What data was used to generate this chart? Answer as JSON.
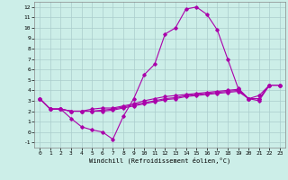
{
  "title": "",
  "xlabel": "Windchill (Refroidissement éolien,°C)",
  "ylabel": "",
  "xlim": [
    -0.5,
    23.5
  ],
  "ylim": [
    -1.5,
    12.5
  ],
  "yticks": [
    -1,
    0,
    1,
    2,
    3,
    4,
    5,
    6,
    7,
    8,
    9,
    10,
    11,
    12
  ],
  "xticks": [
    0,
    1,
    2,
    3,
    4,
    5,
    6,
    7,
    8,
    9,
    10,
    11,
    12,
    13,
    14,
    15,
    16,
    17,
    18,
    19,
    20,
    21,
    22,
    23
  ],
  "background_color": "#cceee8",
  "grid_color": "#aacccc",
  "line_color": "#aa00aa",
  "lines": [
    {
      "x": [
        0,
        1,
        2,
        3,
        4,
        5,
        6,
        7,
        8,
        9,
        10,
        11,
        12,
        13,
        14,
        15,
        16,
        17,
        18,
        19,
        20,
        21,
        22,
        23
      ],
      "y": [
        3.2,
        2.2,
        2.2,
        1.3,
        0.5,
        0.2,
        0.0,
        -0.7,
        1.5,
        3.2,
        5.5,
        6.5,
        9.4,
        10.0,
        11.8,
        12.0,
        11.3,
        9.8,
        7.0,
        4.2,
        3.2,
        3.0,
        4.5,
        4.5
      ]
    },
    {
      "x": [
        0,
        1,
        2,
        3,
        4,
        5,
        6,
        7,
        8,
        9,
        10,
        11,
        12,
        13,
        14,
        15,
        16,
        17,
        18,
        19,
        20,
        21,
        22,
        23
      ],
      "y": [
        3.2,
        2.2,
        2.2,
        2.0,
        2.0,
        2.2,
        2.3,
        2.3,
        2.5,
        2.7,
        3.0,
        3.2,
        3.4,
        3.5,
        3.6,
        3.7,
        3.8,
        3.9,
        4.0,
        4.1,
        3.2,
        3.5,
        4.5,
        4.5
      ]
    },
    {
      "x": [
        0,
        1,
        2,
        3,
        4,
        5,
        6,
        7,
        8,
        9,
        10,
        11,
        12,
        13,
        14,
        15,
        16,
        17,
        18,
        19,
        20,
        21,
        22,
        23
      ],
      "y": [
        3.2,
        2.2,
        2.2,
        2.0,
        2.0,
        2.0,
        2.1,
        2.2,
        2.4,
        2.6,
        2.8,
        3.0,
        3.2,
        3.3,
        3.5,
        3.6,
        3.7,
        3.8,
        3.9,
        4.0,
        3.2,
        3.2,
        4.5,
        4.5
      ]
    },
    {
      "x": [
        0,
        1,
        2,
        3,
        4,
        5,
        6,
        7,
        8,
        9,
        10,
        11,
        12,
        13,
        14,
        15,
        16,
        17,
        18,
        19,
        20,
        21,
        22,
        23
      ],
      "y": [
        3.2,
        2.2,
        2.2,
        2.0,
        2.0,
        2.0,
        2.0,
        2.1,
        2.3,
        2.5,
        2.7,
        2.9,
        3.1,
        3.2,
        3.4,
        3.5,
        3.6,
        3.7,
        3.8,
        3.9,
        3.2,
        3.2,
        4.5,
        4.5
      ]
    }
  ]
}
